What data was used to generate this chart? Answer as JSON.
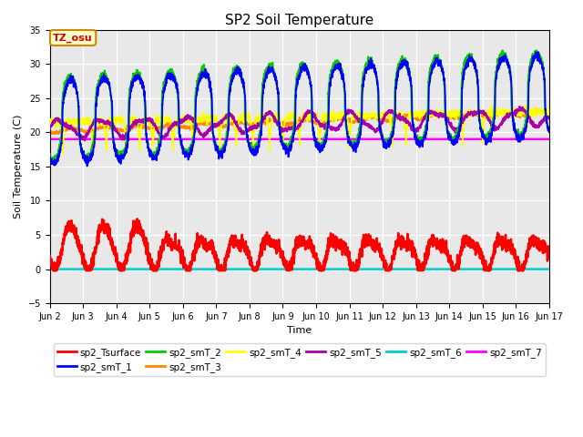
{
  "title": "SP2 Soil Temperature",
  "xlabel": "Time",
  "ylabel": "Soil Temperature (C)",
  "ylim": [
    -5,
    35
  ],
  "yticks": [
    -5,
    0,
    5,
    10,
    15,
    20,
    25,
    30,
    35
  ],
  "xlim_days": [
    2,
    17
  ],
  "xtick_labels": [
    "Jun 2",
    "Jun 3",
    "Jun 4",
    "Jun 5",
    "Jun 6",
    "Jun 7",
    "Jun 8",
    "Jun 9",
    "Jun 10",
    "Jun 11",
    "Jun 12",
    "Jun 13",
    "Jun 14",
    "Jun 15",
    "Jun 16",
    "Jun 17"
  ],
  "bg_color": "#e8e8e8",
  "series_colors": {
    "sp2_Tsurface": "#ff0000",
    "sp2_smT_1": "#0000ff",
    "sp2_smT_2": "#00cc00",
    "sp2_smT_3": "#ff8800",
    "sp2_smT_4": "#ffff00",
    "sp2_smT_5": "#aa00aa",
    "sp2_smT_6": "#00cccc",
    "sp2_smT_7": "#ff00ff"
  },
  "tz_label": "TZ_osu",
  "n_points": 2880,
  "smT_7_val": 19.0,
  "smT_6_val": 0.0
}
